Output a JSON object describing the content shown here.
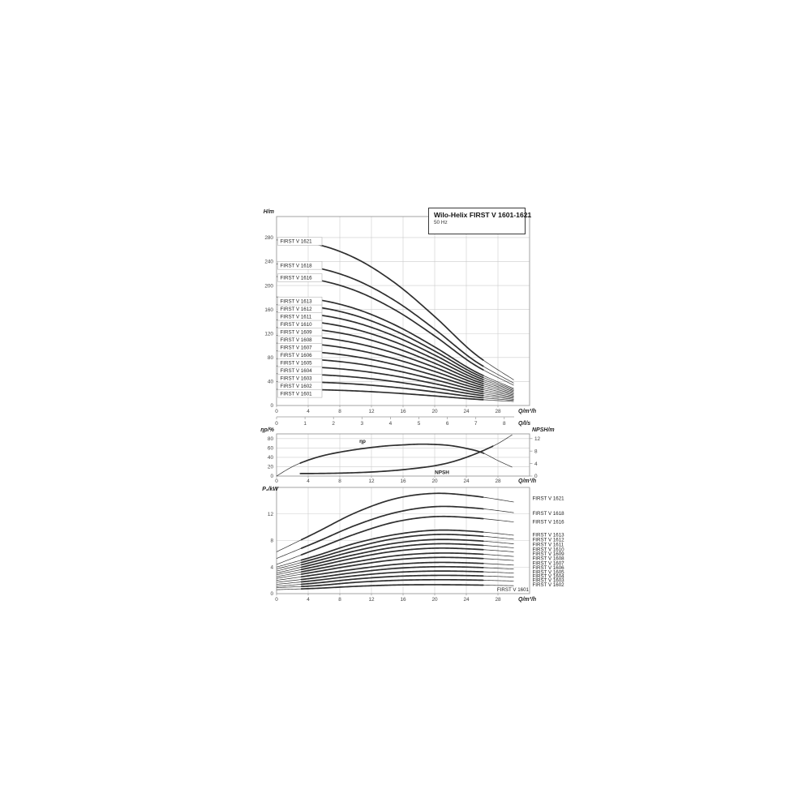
{
  "header": {
    "title": "Wilo-Helix FIRST V 1601-1621",
    "frequency": "50 Hz"
  },
  "colors": {
    "background": "#ffffff",
    "curve": "#2e2e2e",
    "grid": "#cccccc",
    "frame": "#999999",
    "text": "#444444",
    "label_box_border": "#b5b5b5",
    "title_box_border": "#3a3a3a"
  },
  "chart_data": [
    {
      "id": "head_curves",
      "type": "line",
      "title": "Wilo-Helix FIRST V 1601-1621",
      "subtitle": "50 Hz",
      "xlabel": "Q/m³/h",
      "x2label": "Q/l/s",
      "ylabel": "H/m",
      "xlim": [
        0,
        32
      ],
      "ylim": [
        0,
        315
      ],
      "xticks": [
        0,
        4,
        8,
        12,
        16,
        20,
        24,
        28
      ],
      "yticks": [
        0,
        40,
        80,
        120,
        160,
        200,
        240,
        280
      ],
      "x2ticks": [
        0,
        1,
        2,
        3,
        4,
        5,
        6,
        7,
        8
      ],
      "x2_to_x_factor": 3.6,
      "grid": true,
      "legend_position": "curve-start-boxes-left",
      "q": [
        0,
        5,
        10,
        15,
        20,
        25,
        30
      ],
      "series": [
        {
          "name": "FIRST V 1601",
          "values": [
            27,
            26.4,
            24.3,
            20.7,
            15.9,
            10.6,
            6.7
          ],
          "label_y": 20
        },
        {
          "name": "FIRST V 1602",
          "values": [
            40,
            38.9,
            35.7,
            30.2,
            22.7,
            14.4,
            8.5
          ],
          "label_y": 32.8
        },
        {
          "name": "FIRST V 1603",
          "values": [
            53,
            51.5,
            47.2,
            39.6,
            29.5,
            18.4,
            10.3
          ],
          "label_y": 45.7
        },
        {
          "name": "FIRST V 1604",
          "values": [
            66,
            63.9,
            58.5,
            49.1,
            36.3,
            22.2,
            12.1
          ],
          "label_y": 58.5
        },
        {
          "name": "FIRST V 1605",
          "values": [
            78,
            76.5,
            70,
            58.5,
            43.1,
            26.1,
            13.9
          ],
          "label_y": 71.4
        },
        {
          "name": "FIRST V 1606",
          "values": [
            91,
            89,
            81.3,
            68,
            49.9,
            30,
            15.7
          ],
          "label_y": 84.2
        },
        {
          "name": "FIRST V 1607",
          "values": [
            104,
            102,
            92.8,
            77.4,
            56.8,
            33.9,
            17.5
          ],
          "label_y": 97.1
        },
        {
          "name": "FIRST V 1608",
          "values": [
            117,
            114,
            104,
            86.8,
            63.6,
            37.8,
            19.3
          ],
          "label_y": 109.9
        },
        {
          "name": "FIRST V 1609",
          "values": [
            130,
            126.6,
            115.6,
            96.3,
            70.4,
            41.7,
            21.1
          ],
          "label_y": 122.8
        },
        {
          "name": "FIRST V 1610",
          "values": [
            143,
            139,
            126.9,
            105.7,
            77.2,
            45.6,
            22.9
          ],
          "label_y": 135.6
        },
        {
          "name": "FIRST V 1611",
          "values": [
            156,
            151.6,
            138.4,
            115.2,
            84,
            49.5,
            24.7
          ],
          "label_y": 148.5
        },
        {
          "name": "FIRST V 1612",
          "values": [
            168,
            164.2,
            149.8,
            124.6,
            90.8,
            53.4,
            26.5
          ],
          "label_y": 161.3
        },
        {
          "name": "FIRST V 1613",
          "values": [
            181,
            176.8,
            161.2,
            134.1,
            97.6,
            57.3,
            28.3
          ],
          "label_y": 174.2
        },
        {
          "name": "FIRST V 1616",
          "values": [
            215,
            209.8,
            191.3,
            159.2,
            115.9,
            68.1,
            33.7
          ],
          "label_y": 213
        },
        {
          "name": "FIRST V 1618",
          "values": [
            236,
            229.8,
            209.6,
            174.5,
            127.2,
            75,
            37.3
          ],
          "label_y": 233.5
        },
        {
          "name": "FIRST V 1621",
          "values": [
            276,
            269,
            245.3,
            204,
            148.3,
            86.9,
            42.7
          ],
          "label_y": 273.7
        }
      ]
    },
    {
      "id": "efficiency_npsh",
      "type": "line",
      "xlabel": "Q/m³/h",
      "ylabel_left": "ηp/%",
      "ylabel_right": "NPSH/m",
      "xlim": [
        0,
        32
      ],
      "ylim_left": [
        0,
        90
      ],
      "ylim_right": [
        0,
        13.5
      ],
      "xticks": [
        0,
        4,
        8,
        12,
        16,
        20,
        24,
        28
      ],
      "yticks_left": [
        0,
        20,
        40,
        60,
        80
      ],
      "yticks_right": [
        0,
        4,
        8,
        12
      ],
      "grid": true,
      "series": [
        {
          "name": "ηp",
          "axis": "left",
          "x": [
            0,
            2,
            4,
            6,
            8,
            10,
            12,
            14,
            16,
            18,
            20,
            22,
            24,
            26,
            28,
            29.8
          ],
          "values": [
            0,
            20,
            34,
            44,
            51,
            56.5,
            61,
            64.5,
            66.5,
            68,
            67.5,
            65,
            59,
            50,
            33,
            19
          ]
        },
        {
          "name": "NPSH",
          "axis": "right",
          "x": [
            3,
            6,
            9,
            12,
            15,
            18,
            20,
            22,
            24,
            26,
            28,
            29.8
          ],
          "values": [
            0.8,
            0.85,
            1.0,
            1.3,
            1.8,
            2.6,
            3.3,
            4.4,
            6.0,
            8.0,
            10.4,
            13.2
          ]
        }
      ]
    },
    {
      "id": "power",
      "type": "line",
      "xlabel": "Q/m³/h",
      "ylabel": "P₂/kW",
      "xlim": [
        0,
        32
      ],
      "ylim": [
        0,
        16
      ],
      "xticks": [
        0,
        4,
        8,
        12,
        16,
        20,
        24,
        28
      ],
      "yticks": [
        0,
        4,
        8,
        12
      ],
      "grid": true,
      "legend_position": "curve-end-labels-right",
      "q": [
        0,
        5,
        10,
        15,
        20,
        25,
        30
      ],
      "series": [
        {
          "name": "FIRST V 1601",
          "values": [
            0.6,
            0.8,
            1.1,
            1.3,
            1.35,
            1.3,
            1.2
          ],
          "label_y": 0.61
        },
        {
          "name": "FIRST V 1602",
          "values": [
            0.9,
            1.2,
            1.7,
            2.0,
            2.1,
            2.05,
            1.9
          ],
          "label_y": 1.33
        },
        {
          "name": "FIRST V 1603",
          "values": [
            1.1,
            1.6,
            2.2,
            2.6,
            2.75,
            2.7,
            2.5
          ],
          "label_y": 2.0
        },
        {
          "name": "FIRST V 1604",
          "values": [
            1.4,
            2.0,
            2.7,
            3.2,
            3.4,
            3.33,
            3.1
          ],
          "label_y": 2.61
        },
        {
          "name": "FIRST V 1605",
          "values": [
            1.7,
            2.4,
            3.2,
            3.8,
            4.05,
            3.97,
            3.7
          ],
          "label_y": 3.21
        },
        {
          "name": "FIRST V 1606",
          "values": [
            2.0,
            2.85,
            3.7,
            4.4,
            4.7,
            4.6,
            4.3
          ],
          "label_y": 3.88
        },
        {
          "name": "FIRST V 1607",
          "values": [
            2.3,
            3.3,
            4.3,
            5.1,
            5.45,
            5.35,
            5.0
          ],
          "label_y": 4.61
        },
        {
          "name": "FIRST V 1608",
          "values": [
            2.55,
            3.7,
            4.8,
            5.7,
            6.1,
            6.0,
            5.6
          ],
          "label_y": 5.33
        },
        {
          "name": "FIRST V 1609",
          "values": [
            2.85,
            4.1,
            5.4,
            6.4,
            6.85,
            6.7,
            6.3
          ],
          "label_y": 6.0
        },
        {
          "name": "FIRST V 1610",
          "values": [
            3.1,
            4.5,
            5.9,
            7.0,
            7.5,
            7.36,
            6.9
          ],
          "label_y": 6.67
        },
        {
          "name": "FIRST V 1611",
          "values": [
            3.4,
            4.9,
            6.45,
            7.6,
            8.15,
            8.0,
            7.5
          ],
          "label_y": 7.39
        },
        {
          "name": "FIRST V 1612",
          "values": [
            3.7,
            5.3,
            7.0,
            8.3,
            8.9,
            8.74,
            8.2
          ],
          "label_y": 8.12
        },
        {
          "name": "FIRST V 1613",
          "values": [
            4.0,
            5.7,
            7.6,
            8.9,
            9.55,
            9.38,
            8.8
          ],
          "label_y": 8.85
        },
        {
          "name": "FIRST V 1616",
          "values": [
            4.4,
            6.7,
            9.0,
            10.8,
            11.6,
            11.4,
            10.8
          ],
          "label_y": 10.79
        },
        {
          "name": "FIRST V 1618",
          "values": [
            5.3,
            7.75,
            10.3,
            12.2,
            13.1,
            12.9,
            12.2
          ],
          "label_y": 12.12
        },
        {
          "name": "FIRST V 1621",
          "values": [
            6.3,
            9.2,
            12.2,
            14.3,
            15.1,
            14.7,
            13.8
          ],
          "label_y": 14.36
        }
      ]
    }
  ]
}
